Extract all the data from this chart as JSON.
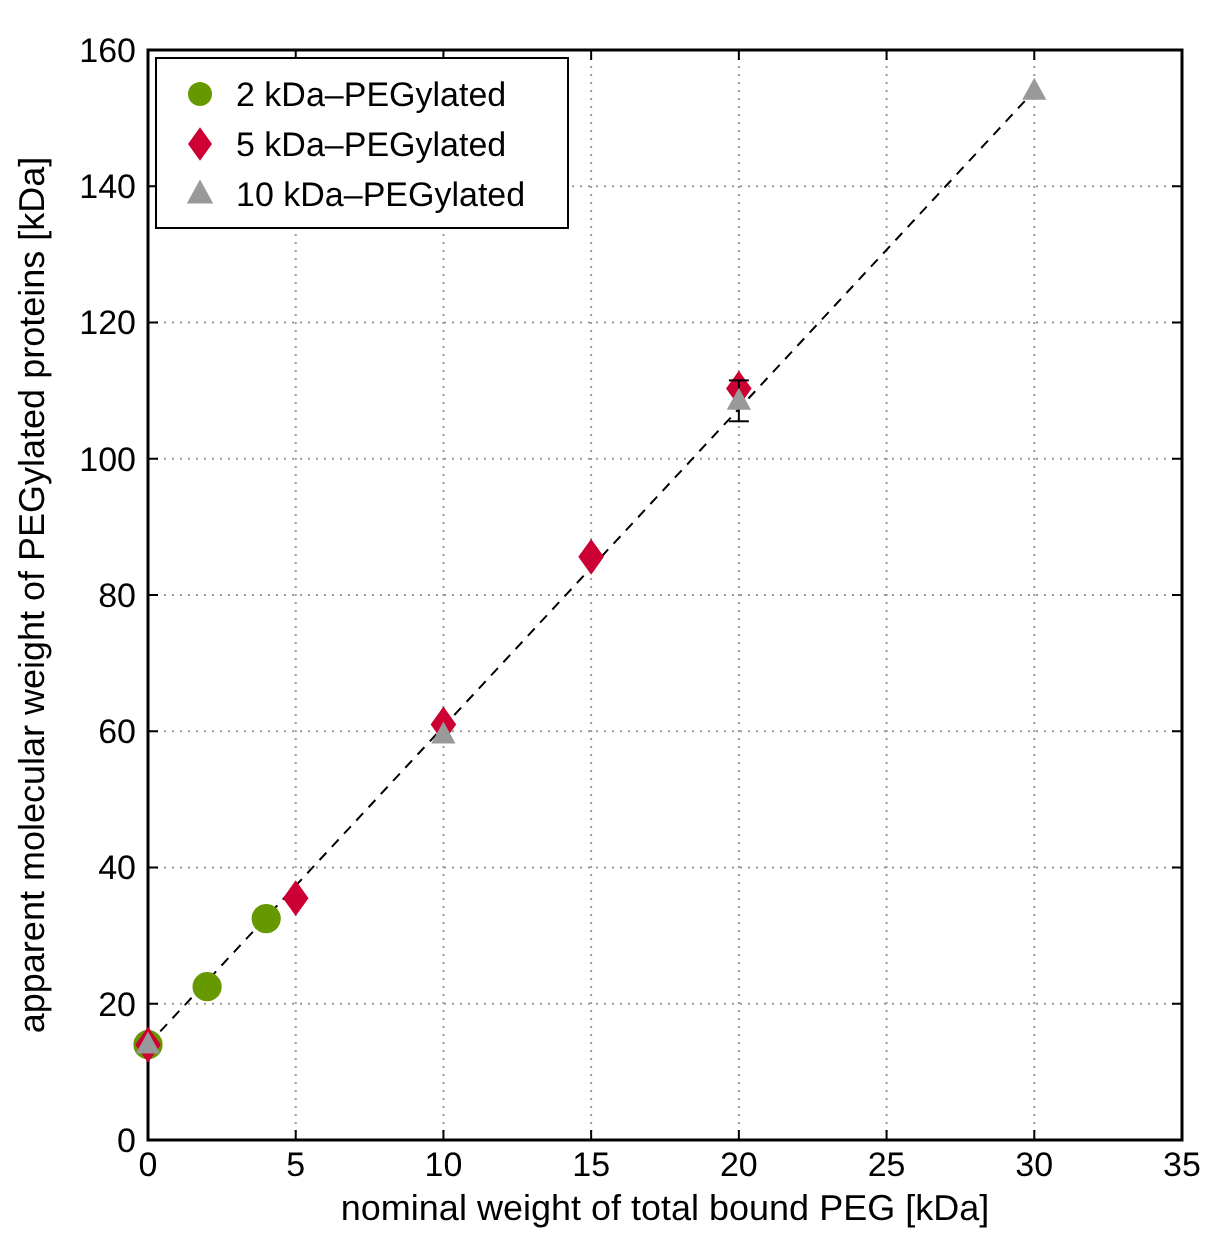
{
  "chart_data": {
    "type": "scatter",
    "xlabel": "nominal weight of total bound PEG [kDa]",
    "ylabel": "apparent molecular weight of PEGylated proteins [kDa]",
    "xlim": [
      0,
      35
    ],
    "xticks": [
      0,
      5,
      10,
      15,
      20,
      25,
      30,
      35
    ],
    "ylim": [
      0,
      160
    ],
    "yticks": [
      0,
      20,
      40,
      60,
      80,
      100,
      120,
      140,
      160
    ],
    "grid": true,
    "legend": "top left",
    "series": [
      {
        "type": "line",
        "x": [
          0,
          30
        ],
        "values": [
          14,
          154
        ],
        "color": "#000000",
        "line_style": "dashed",
        "marker": "none"
      },
      {
        "name": "2 kDa–PEGylated",
        "x": [
          0,
          2,
          4
        ],
        "values": [
          14,
          22.5,
          32.5
        ],
        "color": "#669900",
        "marker": "circle"
      },
      {
        "name": "5 kDa–PEGylated",
        "x": [
          0,
          5,
          10,
          15,
          20
        ],
        "values": [
          14,
          35.5,
          61,
          85.6,
          110.3
        ],
        "color": "#cc0033",
        "marker": "diamond"
      },
      {
        "name": "10 kDa–PEGylated",
        "x": [
          0,
          10,
          20,
          30
        ],
        "values": [
          14,
          59.5,
          108.5,
          154
        ],
        "errors": [
          null,
          null,
          3,
          null
        ],
        "color": "#999999",
        "marker": "triangle"
      }
    ]
  }
}
